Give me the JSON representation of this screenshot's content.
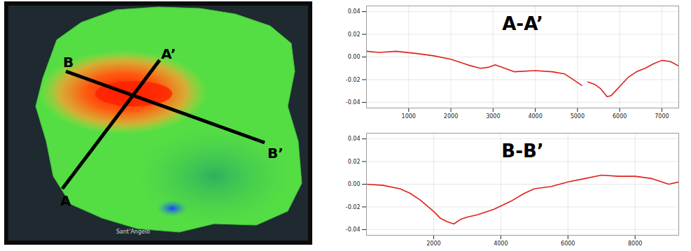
{
  "map": {
    "section_labels": [
      "A",
      "A’",
      "B",
      "B’"
    ],
    "place_labels": [
      "Sant'Angelo"
    ]
  },
  "chart_data": [
    {
      "type": "line",
      "title": "A-A’",
      "color": "#e0201b",
      "grid": true,
      "x": [
        0,
        300,
        700,
        1200,
        1600,
        2000,
        2400,
        2700,
        2900,
        3050,
        3200,
        3500,
        4000,
        4400,
        4700,
        4900,
        5100,
        5170,
        5250,
        5400,
        5550,
        5700,
        5800,
        5900,
        6050,
        6200,
        6400,
        6600,
        6800,
        7000,
        7200,
        7400
      ],
      "values": [
        0.005,
        0.004,
        0.005,
        0.003,
        0.001,
        -0.002,
        -0.007,
        -0.01,
        -0.009,
        -0.007,
        -0.009,
        -0.013,
        -0.012,
        -0.013,
        -0.015,
        -0.02,
        -0.025,
        null,
        -0.022,
        -0.024,
        -0.028,
        -0.035,
        -0.034,
        -0.03,
        -0.024,
        -0.018,
        -0.013,
        -0.01,
        -0.006,
        -0.003,
        -0.004,
        -0.008
      ],
      "xlim": [
        0,
        7400
      ],
      "ylim": [
        -0.045,
        0.045
      ],
      "xticks": [
        1000,
        2000,
        3000,
        4000,
        5000,
        6000,
        7000
      ],
      "yticks": [
        -0.04,
        -0.02,
        {
          "value": 0,
          "label": "0.00"
        },
        0.02,
        0.04
      ]
    },
    {
      "type": "line",
      "title": "B-B’",
      "color": "#e0201b",
      "grid": true,
      "x": [
        0,
        500,
        1000,
        1300,
        1600,
        2000,
        2200,
        2400,
        2600,
        2800,
        3000,
        3300,
        3800,
        4300,
        4700,
        5000,
        5500,
        6000,
        6500,
        7000,
        7500,
        8000,
        8500,
        8800,
        9000,
        9300
      ],
      "values": [
        0,
        -0.001,
        -0.004,
        -0.008,
        -0.014,
        -0.024,
        -0.03,
        -0.033,
        -0.035,
        -0.031,
        -0.029,
        -0.027,
        -0.022,
        -0.015,
        -0.008,
        -0.004,
        -0.002,
        0.002,
        0.005,
        0.008,
        0.007,
        0.007,
        0.005,
        0.002,
        0,
        0.002
      ],
      "xlim": [
        0,
        9300
      ],
      "ylim": [
        -0.045,
        0.045
      ],
      "xticks": [
        2000,
        4000,
        6000,
        8000
      ],
      "yticks": [
        -0.04,
        -0.02,
        {
          "value": 0,
          "label": "0.00"
        },
        0.02,
        0.04
      ]
    }
  ]
}
